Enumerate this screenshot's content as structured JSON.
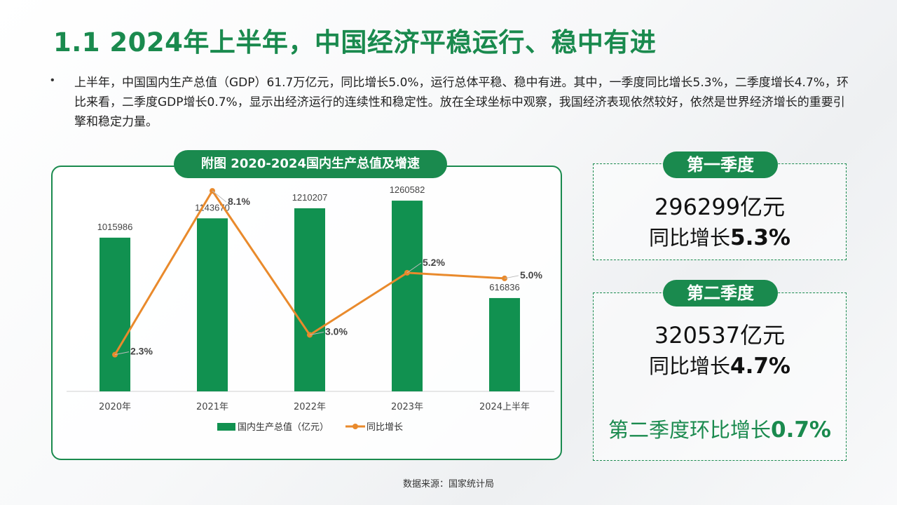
{
  "title": "1.1 2024年上半年，中国经济平稳运行、稳中有进",
  "bullet": "上半年，中国国内生产总值（GDP）61.7万亿元，同比增长5.0%，运行总体平稳、稳中有进。其中，一季度同比增长5.3%，二季度增长4.7%，环比来看，二季度GDP增长0.7%，显示出经济运行的连续性和稳定性。放在全球坐标中观察，我国经济表现依然较好，依然是世界经济增长的重要引擎和稳定力量。",
  "chart_title": "附图 2020-2024国内生产总值及增速",
  "chart_data": {
    "type": "bar+line",
    "title": "附图 2020-2024国内生产总值及增速",
    "categories": [
      "2020年",
      "2021年",
      "2022年",
      "2023年",
      "2024上半年"
    ],
    "series": [
      {
        "name": "国内生产总值（亿元）",
        "type": "bar",
        "values": [
          1015986,
          1143670,
          1210207,
          1260582,
          616836
        ],
        "labels": [
          "1015986",
          "1143670",
          "1210207",
          "1260582",
          "616836"
        ],
        "color": "#119150"
      },
      {
        "name": "同比增长",
        "type": "line",
        "values": [
          2.3,
          8.1,
          3.0,
          5.2,
          5.0
        ],
        "labels": [
          "2.3%",
          "8.1%",
          "3.0%",
          "5.2%",
          "5.0%"
        ],
        "color": "#e98a2c"
      }
    ],
    "bar_axis_range": [
      0,
      1400000
    ],
    "line_axis_range": [
      1.0,
      8.5
    ],
    "grid": false,
    "legend_position": "bottom"
  },
  "q1": {
    "label": "第一季度",
    "value": "296299亿元",
    "growth_prefix": "同比增长",
    "growth": "5.3%"
  },
  "q2": {
    "label": "第二季度",
    "value": "320537亿元",
    "growth_prefix": "同比增长",
    "growth": "4.7%"
  },
  "qoq": {
    "prefix": "第二季度环比增长",
    "value": "0.7%"
  },
  "source": "数据来源：国家统计局",
  "colors": {
    "accent": "#1a8a4e",
    "bar": "#119150",
    "line": "#e98a2c"
  }
}
